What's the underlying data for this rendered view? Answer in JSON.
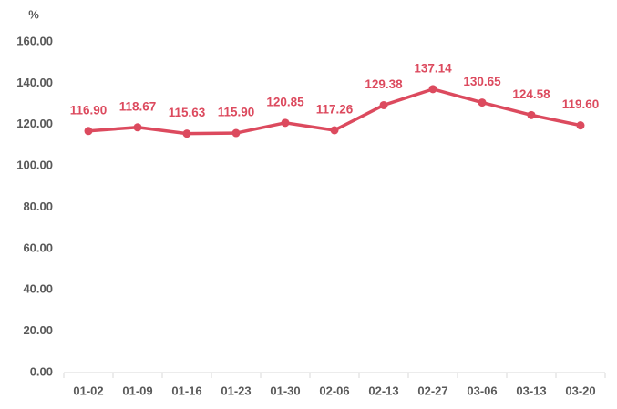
{
  "chart_data": {
    "type": "line",
    "y_label": "%",
    "categories": [
      "01-02",
      "01-09",
      "01-16",
      "01-23",
      "01-30",
      "02-06",
      "02-13",
      "02-27",
      "03-06",
      "03-13",
      "03-20"
    ],
    "series": [
      {
        "name": null,
        "color": "#dc4a5e",
        "values": [
          116.9,
          118.67,
          115.63,
          115.9,
          120.85,
          117.26,
          129.38,
          137.14,
          130.65,
          124.58,
          119.6
        ],
        "value_labels": [
          "116.90",
          "118.67",
          "115.63",
          "115.90",
          "120.85",
          "117.26",
          "129.38",
          "137.14",
          "130.65",
          "124.58",
          "119.60"
        ]
      }
    ],
    "ylim": [
      0,
      160
    ],
    "yticks": [
      {
        "value": 0,
        "label": "0.00"
      },
      {
        "value": 20,
        "label": "20.00"
      },
      {
        "value": 40,
        "label": "40.00"
      },
      {
        "value": 60,
        "label": "60.00"
      },
      {
        "value": 80,
        "label": "80.00"
      },
      {
        "value": 100,
        "label": "100.00"
      },
      {
        "value": 120,
        "label": "120.00"
      },
      {
        "value": 140,
        "label": "140.00"
      },
      {
        "value": 160,
        "label": "160.00"
      }
    ],
    "grid": false
  }
}
